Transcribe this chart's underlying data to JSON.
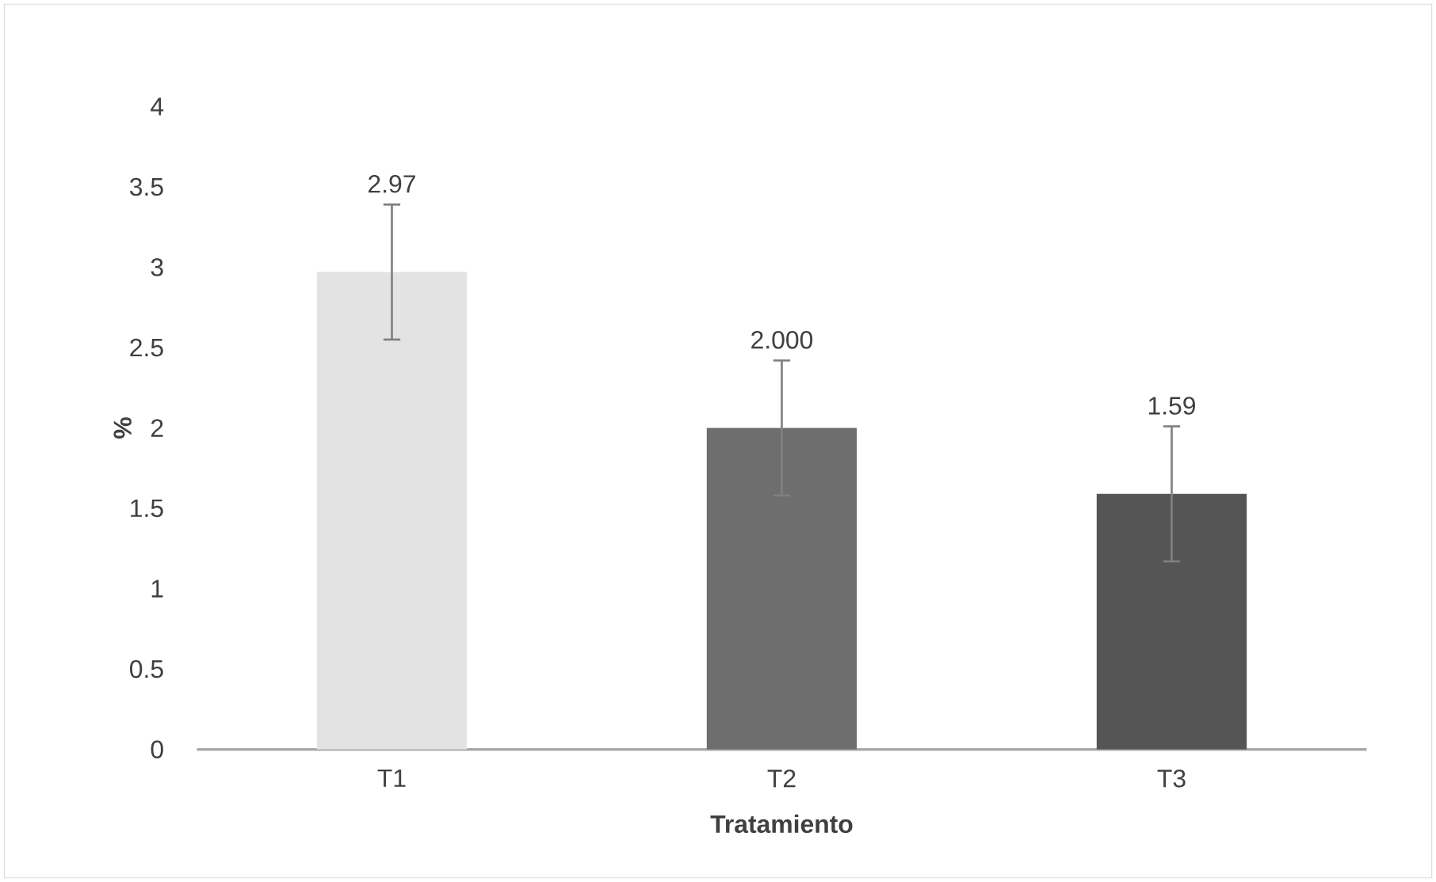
{
  "chart_data": {
    "type": "bar",
    "xlabel": "Tratamiento",
    "ylabel": "%",
    "categories": [
      "T1",
      "T2",
      "T3"
    ],
    "values": [
      2.97,
      2.0,
      1.59
    ],
    "errors": [
      0.42,
      0.42,
      0.42
    ],
    "value_labels": [
      "2.97",
      "2.000",
      "1.59"
    ],
    "colors": [
      "#e3e3e3",
      "#6e6e6e",
      "#555555"
    ],
    "ylim": [
      0,
      4
    ],
    "yticks": [
      0,
      0.5,
      1,
      1.5,
      2,
      2.5,
      3,
      3.5,
      4
    ]
  }
}
